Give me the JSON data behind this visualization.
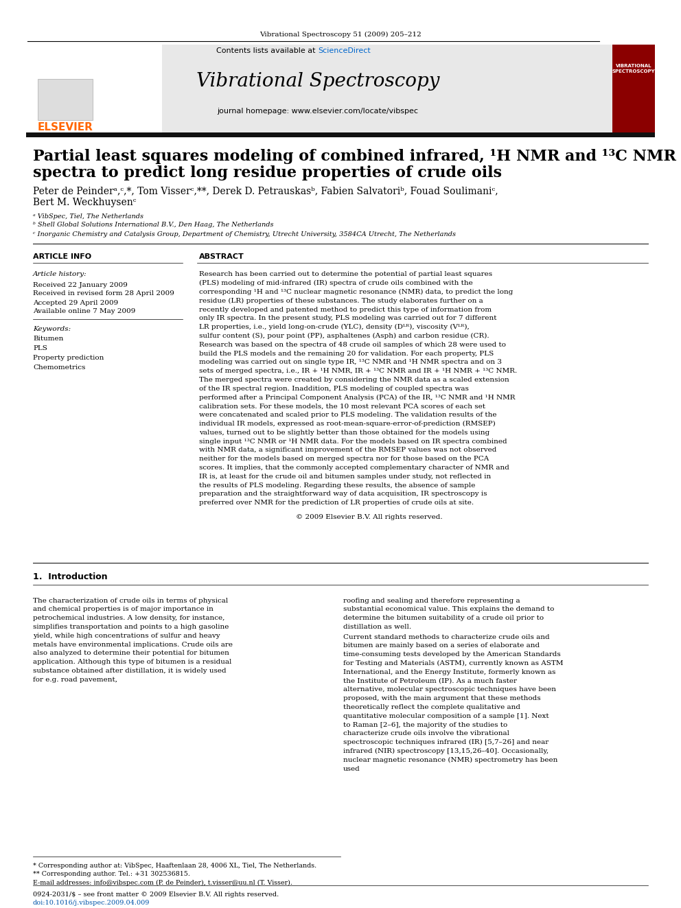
{
  "journal_line": "Vibrational Spectroscopy 51 (2009) 205–212",
  "contents_line": "Contents lists available at ScienceDirect",
  "journal_title": "Vibrational Spectroscopy",
  "journal_homepage": "journal homepage: www.elsevier.com/locate/vibspec",
  "paper_title_line1": "Partial least squares modeling of combined infrared, ¹H NMR and ¹³C NMR",
  "paper_title_line2": "spectra to predict long residue properties of crude oils",
  "authors_line1": "Peter de Peinderᵃ,ᶜ,*, Tom Visserᶜ,**, Derek D. Petrauskasᵇ, Fabien Salvatoriᵇ, Fouad Soulimaniᶜ,",
  "authors_line2": "Bert M. Weckhuysenᶜ",
  "affil_a": "ᵃ VibSpec, Tiel, The Netherlands",
  "affil_b": "ᵇ Shell Global Solutions International B.V., Den Haag, The Netherlands",
  "affil_c": "ᶜ Inorganic Chemistry and Catalysis Group, Department of Chemistry, Utrecht University, 3584CA Utrecht, The Netherlands",
  "article_info_header": "ARTICLE INFO",
  "abstract_header": "ABSTRACT",
  "article_history_label": "Article history:",
  "received": "Received 22 January 2009",
  "revised": "Received in revised form 28 April 2009",
  "accepted": "Accepted 29 April 2009",
  "available": "Available online 7 May 2009",
  "keywords_label": "Keywords:",
  "keywords": [
    "Bitumen",
    "PLS",
    "Property prediction",
    "Chemometrics"
  ],
  "abstract_text": "Research has been carried out to determine the potential of partial least squares (PLS) modeling of mid-infrared (IR) spectra of crude oils combined with the corresponding ¹H and ¹³C nuclear magnetic resonance (NMR) data, to predict the long residue (LR) properties of these substances. The study elaborates further on a recently developed and patented method to predict this type of information from only IR spectra. In the present study, PLS modeling was carried out for 7 different LR properties, i.e., yield long-on-crude (YLC), density (Dᴸᴿ), viscosity (Vᴸᴿ), sulfur content (S), pour point (PP), asphaltenes (Asph) and carbon residue (CR). Research was based on the spectra of 48 crude oil samples of which 28 were used to build the PLS models and the remaining 20 for validation. For each property, PLS modeling was carried out on single type IR, ¹³C NMR and ¹H NMR spectra and on 3 sets of merged spectra, i.e., IR + ¹H NMR, IR + ¹³C NMR and IR + ¹H NMR + ¹³C NMR. The merged spectra were created by considering the NMR data as a scaled extension of the IR spectral region. Inaddition, PLS modeling of coupled spectra was performed after a Principal Component Analysis (PCA) of the IR, ¹³C NMR and ¹H NMR calibration sets. For these models, the 10 most relevant PCA scores of each set were concatenated and scaled prior to PLS modeling. The validation results of the individual IR models, expressed as root-mean-square-error-of-prediction (RMSEP) values, turned out to be slightly better than those obtained for the models using single input ¹³C NMR or ¹H NMR data. For the models based on IR spectra combined with NMR data, a significant improvement of the RMSEP values was not observed neither for the models based on merged spectra nor for those based on the PCA scores. It implies, that the commonly accepted complementary character of NMR and IR is, at least for the crude oil and bitumen samples under study, not reflected in the results of PLS modeling. Regarding these results, the absence of sample preparation and the straightforward way of data acquisition, IR spectroscopy is preferred over NMR for the prediction of LR properties of crude oils at site.",
  "copyright": "© 2009 Elsevier B.V. All rights reserved.",
  "section1_header": "1.  Introduction",
  "intro_col1": "The characterization of crude oils in terms of physical and chemical properties is of major importance in petrochemical industries. A low density, for instance, simplifies transportation and points to a high gasoline yield, while high concentrations of sulfur and heavy metals have environmental implications. Crude oils are also analyzed to determine their potential for bitumen application. Although this type of bitumen is a residual substance obtained after distillation, it is widely used for e.g. road pavement,",
  "intro_col2": "roofing and sealing and therefore representing a substantial economical value. This explains the demand to determine the bitumen suitability of a crude oil prior to distillation as well.\n    Current standard methods to characterize crude oils and bitumen are mainly based on a series of elaborate and time-consuming tests developed by the American Standards for Testing and Materials (ASTM), currently known as ASTM International, and the Energy Institute, formerly known as the Institute of Petroleum (IP). As a much faster alternative, molecular spectroscopic techniques have been proposed, with the main argument that these methods theoretically reflect the complete qualitative and quantitative molecular composition of a sample [1]. Next to Raman [2–6], the majority of the studies to characterize crude oils involve the vibrational spectroscopic techniques infrared (IR) [5,7–26] and near infrared (NIR) spectroscopy [13,15,26–40]. Occasionally, nuclear magnetic resonance (NMR) spectrometry has been used",
  "footnote_star": "* Corresponding author at: VibSpec, Haaftenlaan 28, 4006 XL, Tiel, The Netherlands.",
  "footnote_dstar": "** Corresponding author. Tel.: +31 302536815.",
  "footnote_email": "E-mail addresses: info@vibspec.com (P. de Peinder), t.visser@uu.nl (T. Visser).",
  "issn_line": "0924-2031/$ – see front matter © 2009 Elsevier B.V. All rights reserved.",
  "doi_line": "doi:10.1016/j.vibspec.2009.04.009",
  "elsevier_color": "#FF6600",
  "sciencedirect_color": "#0066CC",
  "header_bg": "#E8E8E8",
  "dark_bar_color": "#111111",
  "journal_cover_red": "#8B0000"
}
